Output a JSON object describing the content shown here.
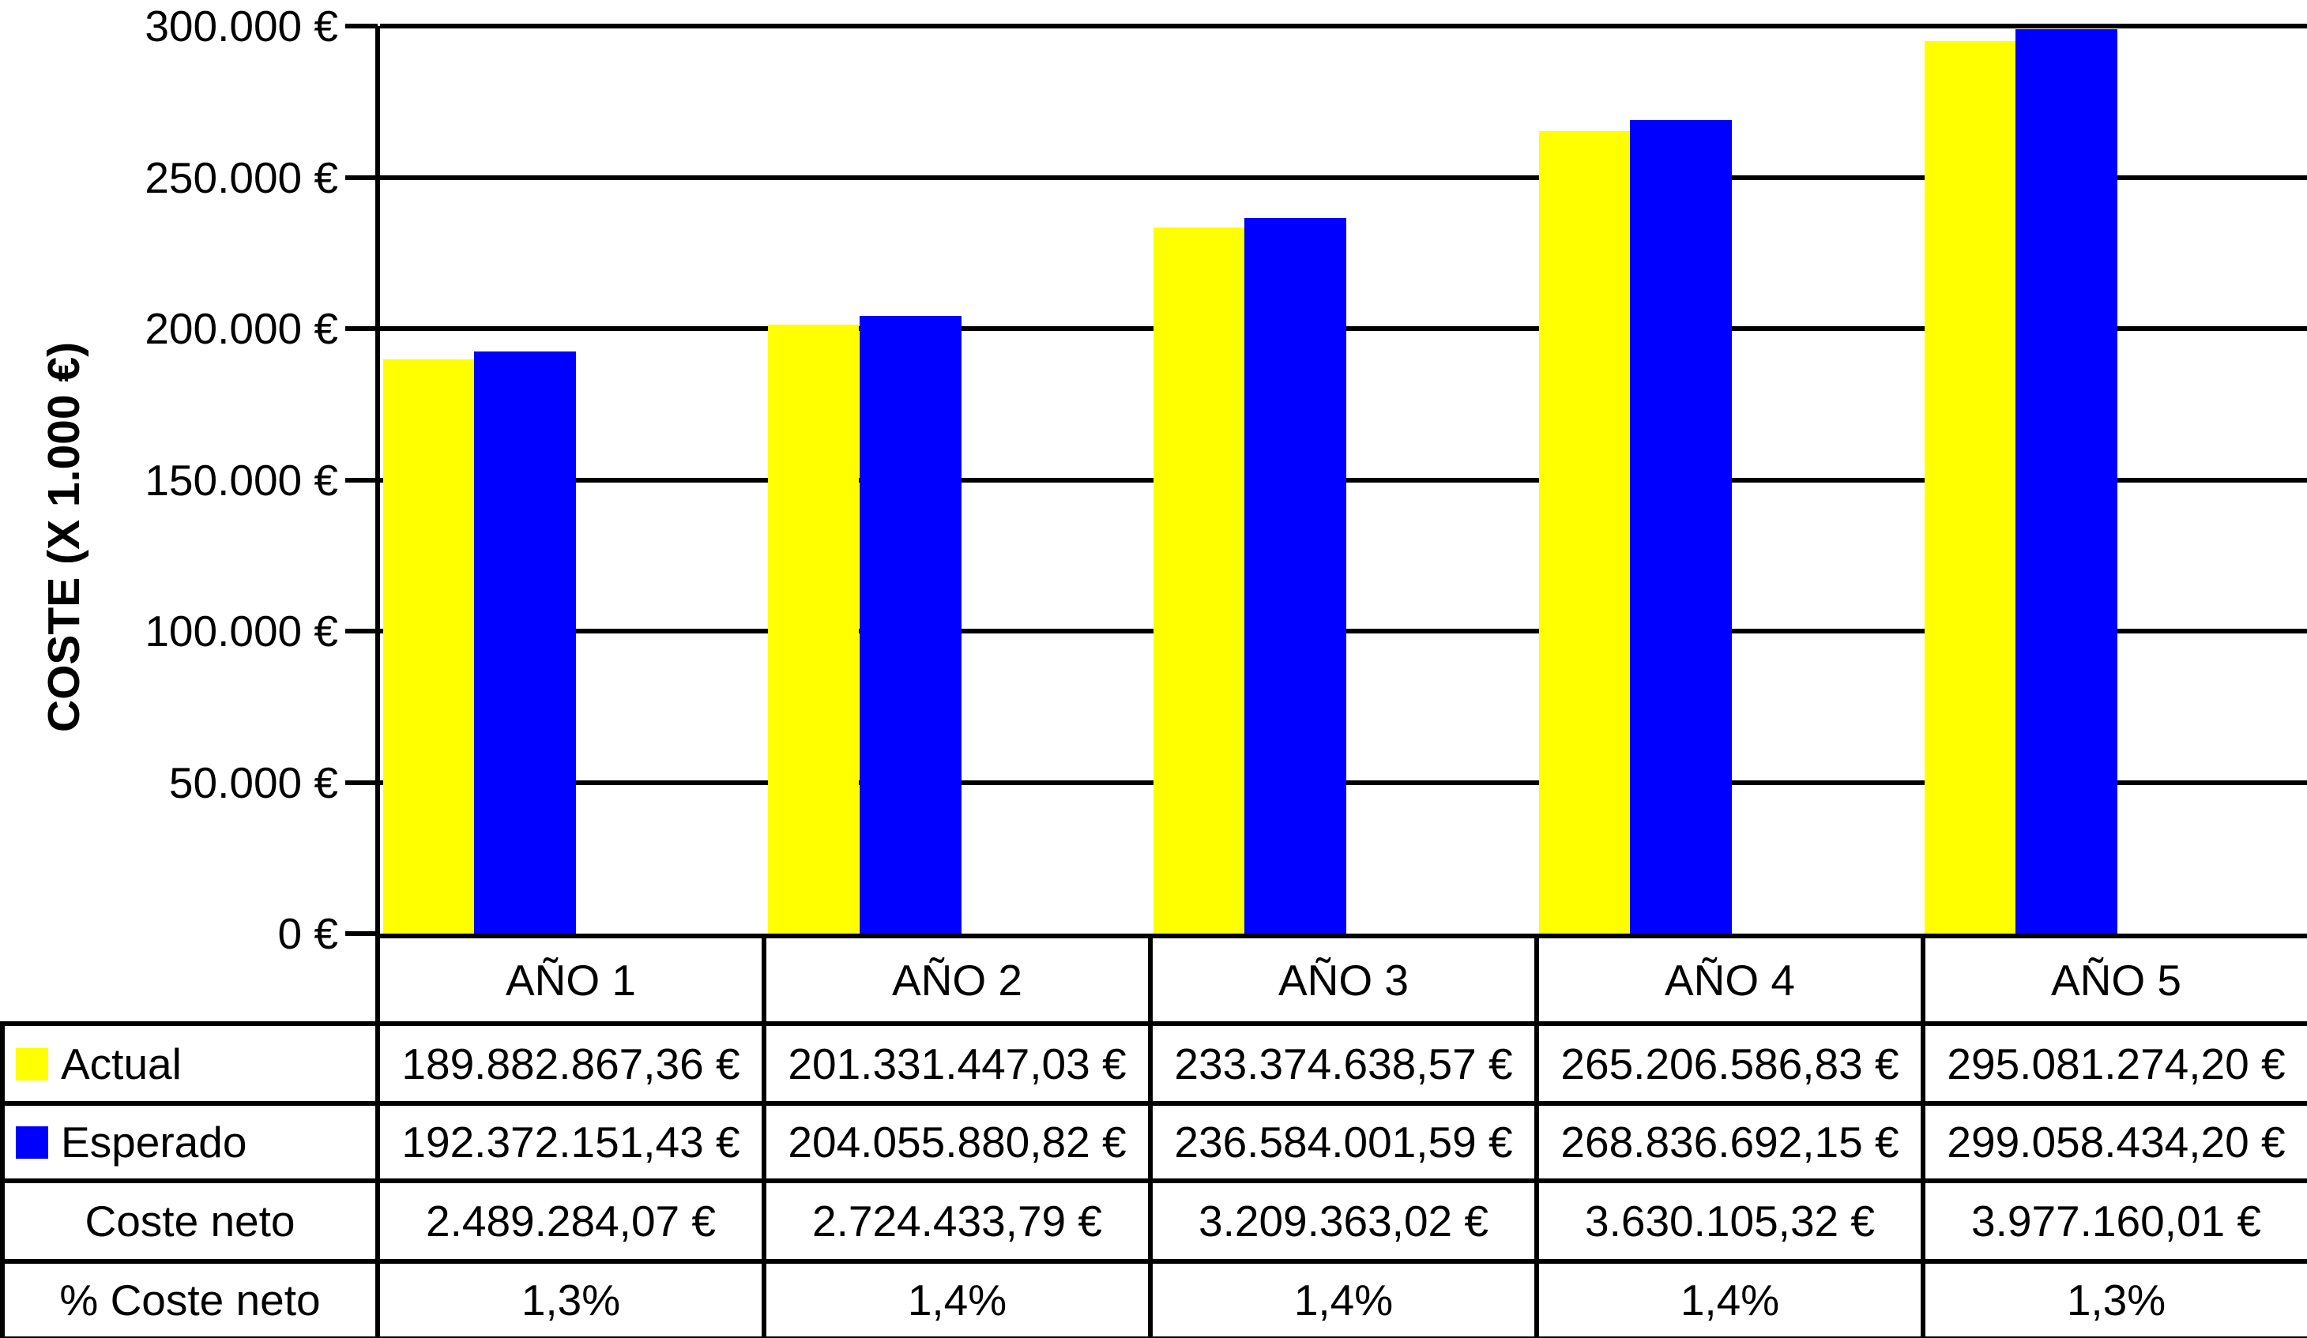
{
  "chart_data": {
    "type": "bar",
    "title": "",
    "ylabel": "COSTE (X 1.000 €)",
    "categories": [
      "AÑO 1",
      "AÑO 2",
      "AÑO 3",
      "AÑO 4",
      "AÑO 5"
    ],
    "series": [
      {
        "name": "Actual",
        "color": "#FFFF00",
        "values": [
          189882867.36,
          201331447.03,
          233374638.57,
          265206586.83,
          295081274.2
        ]
      },
      {
        "name": "Esperado",
        "color": "#0000FF",
        "values": [
          192372151.43,
          204055880.82,
          236584001.59,
          268836692.15,
          299058434.2
        ]
      }
    ],
    "ylim_eur": [
      0,
      300000000
    ],
    "y_tick_labels": [
      "300.000 €",
      "250.000 €",
      "200.000 €",
      "150.000 €",
      "100.000 €",
      "50.000 €",
      "0 €"
    ],
    "grid": true,
    "legend_position": "table-row-headers"
  },
  "table": {
    "rows": [
      {
        "label": "Actual",
        "swatch": "#FFFF00",
        "cells": [
          "189.882.867,36 €",
          "201.331.447,03 €",
          "233.374.638,57 €",
          "265.206.586,83 €",
          "295.081.274,20 €"
        ]
      },
      {
        "label": "Esperado",
        "swatch": "#0000FF",
        "cells": [
          "192.372.151,43 €",
          "204.055.880,82 €",
          "236.584.001,59 €",
          "268.836.692,15 €",
          "299.058.434,20 €"
        ]
      },
      {
        "label": "Coste neto",
        "swatch": null,
        "cells": [
          "2.489.284,07 €",
          "2.724.433,79 €",
          "3.209.363,02 €",
          "3.630.105,32 €",
          "3.977.160,01 €"
        ]
      },
      {
        "label": "% Coste neto",
        "swatch": null,
        "cells": [
          "1,3%",
          "1,4%",
          "1,4%",
          "1,4%",
          "1,3%"
        ]
      }
    ]
  },
  "colors": {
    "actual": "#FFFF00",
    "esperado": "#0000FF",
    "line": "#000000",
    "background": "#FFFFFF"
  }
}
